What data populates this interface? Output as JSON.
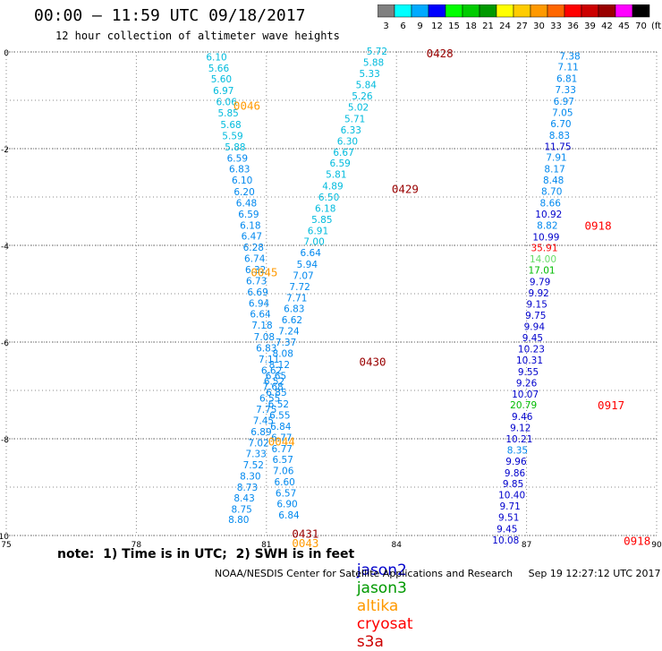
{
  "header": {
    "title": "00:00 – 11:59 UTC 09/18/2017",
    "subtitle": "12 hour collection of altimeter wave heights"
  },
  "colorbar": {
    "labels": [
      "3",
      "6",
      "9",
      "12",
      "15",
      "18",
      "21",
      "24",
      "27",
      "30",
      "33",
      "36",
      "39",
      "42",
      "45",
      "70",
      "(ft)"
    ],
    "colors": [
      "#808080",
      "#00ffff",
      "#00aaff",
      "#0000ff",
      "#00ff00",
      "#00cc00",
      "#009900",
      "#ffff00",
      "#ffcc00",
      "#ff9900",
      "#ff6600",
      "#ff0000",
      "#cc0000",
      "#990000",
      "#ff00ff",
      "#000000"
    ]
  },
  "note": "note:  1) Time is in UTC;  2) SWH is in feet",
  "satellites": [
    {
      "name": "jason2",
      "color": "#0000cc"
    },
    {
      "name": "jason3",
      "color": "#009900"
    },
    {
      "name": "altika",
      "color": "#ff9900"
    },
    {
      "name": "cryosat",
      "color": "#ff0000"
    },
    {
      "name": "s3a",
      "color": "#cc0000"
    }
  ],
  "footer": "NOAA/NESDIS Center for Satellite Applications and Research     Sep 19 12:27:12 UTC 2017",
  "chart_data": {
    "type": "scatter",
    "xlim": [
      75,
      90
    ],
    "ylim": [
      -10,
      0
    ],
    "xticks": [
      "75",
      "78",
      "81",
      "84",
      "87",
      "90"
    ],
    "yticks": [
      "0",
      "-2",
      "-4",
      "-6",
      "-8",
      "-10"
    ],
    "grid": true,
    "colors": {
      "cyan": "#00bbdd",
      "sky": "#0088ee",
      "blue": "#0000cc",
      "green": "#00bb00",
      "orange": "#ff9900",
      "red": "#ff0000",
      "dark": "#990000",
      "lightgreen": "#66dd66"
    },
    "tracks": [
      {
        "id": "trackA",
        "points": [
          {
            "x": 79.85,
            "y": -0.1,
            "label": "6.10",
            "c": "cyan"
          },
          {
            "x": 79.9,
            "y": -0.33,
            "label": "5.66",
            "c": "cyan"
          },
          {
            "x": 79.96,
            "y": -0.56,
            "label": "5.60",
            "c": "cyan"
          },
          {
            "x": 80.01,
            "y": -0.8,
            "label": "6.97",
            "c": "cyan"
          },
          {
            "x": 80.08,
            "y": -1.03,
            "label": "6.06",
            "c": "cyan"
          },
          {
            "x": 80.12,
            "y": -1.26,
            "label": "5.85",
            "c": "cyan"
          },
          {
            "x": 80.18,
            "y": -1.5,
            "label": "5.68",
            "c": "cyan"
          },
          {
            "x": 80.22,
            "y": -1.73,
            "label": "5.59",
            "c": "cyan"
          },
          {
            "x": 80.28,
            "y": -1.96,
            "label": "5.88",
            "c": "cyan"
          },
          {
            "x": 80.33,
            "y": -2.19,
            "label": "6.59",
            "c": "sky"
          },
          {
            "x": 80.38,
            "y": -2.42,
            "label": "6.83",
            "c": "sky"
          },
          {
            "x": 80.44,
            "y": -2.65,
            "label": "6.10",
            "c": "sky"
          },
          {
            "x": 80.49,
            "y": -2.89,
            "label": "6.20",
            "c": "sky"
          },
          {
            "x": 80.54,
            "y": -3.12,
            "label": "6.48",
            "c": "sky"
          },
          {
            "x": 80.59,
            "y": -3.35,
            "label": "6.59",
            "c": "sky"
          },
          {
            "x": 80.63,
            "y": -3.58,
            "label": "6.18",
            "c": "sky"
          },
          {
            "x": 80.66,
            "y": -3.81,
            "label": "6.47",
            "c": "sky"
          },
          {
            "x": 80.7,
            "y": -4.04,
            "label": "6.28",
            "c": "sky"
          },
          {
            "x": 80.73,
            "y": -4.27,
            "label": "6.74",
            "c": "sky"
          },
          {
            "x": 80.75,
            "y": -4.5,
            "label": "6.32",
            "c": "sky"
          },
          {
            "x": 80.77,
            "y": -4.73,
            "label": "6.73",
            "c": "sky"
          },
          {
            "x": 80.8,
            "y": -4.96,
            "label": "6.69",
            "c": "sky"
          },
          {
            "x": 80.83,
            "y": -5.19,
            "label": "6.94",
            "c": "sky"
          },
          {
            "x": 80.86,
            "y": -5.42,
            "label": "6.64",
            "c": "sky"
          },
          {
            "x": 80.9,
            "y": -5.65,
            "label": "7.18",
            "c": "sky"
          },
          {
            "x": 80.95,
            "y": -5.89,
            "label": "7.08",
            "c": "sky"
          },
          {
            "x": 81.0,
            "y": -6.12,
            "label": "6.83",
            "c": "sky"
          },
          {
            "x": 81.06,
            "y": -6.35,
            "label": "7.11",
            "c": "sky"
          },
          {
            "x": 81.12,
            "y": -6.58,
            "label": "6.62",
            "c": "sky"
          },
          {
            "x": 81.18,
            "y": -6.81,
            "label": "6.52",
            "c": "sky"
          },
          {
            "x": 81.23,
            "y": -7.04,
            "label": "6.85",
            "c": "sky"
          },
          {
            "x": 81.28,
            "y": -7.28,
            "label": "6.52",
            "c": "sky"
          },
          {
            "x": 81.31,
            "y": -7.51,
            "label": "6.55",
            "c": "sky"
          },
          {
            "x": 81.33,
            "y": -7.74,
            "label": "6.84",
            "c": "sky"
          },
          {
            "x": 81.35,
            "y": -7.97,
            "label": "6.77",
            "c": "sky"
          },
          {
            "x": 81.36,
            "y": -8.2,
            "label": "6.77",
            "c": "sky"
          },
          {
            "x": 81.38,
            "y": -8.43,
            "label": "6.57",
            "c": "sky"
          },
          {
            "x": 81.39,
            "y": -8.66,
            "label": "7.06",
            "c": "sky"
          },
          {
            "x": 81.42,
            "y": -8.89,
            "label": "6.60",
            "c": "sky"
          },
          {
            "x": 81.45,
            "y": -9.12,
            "label": "6.57",
            "c": "sky"
          },
          {
            "x": 81.48,
            "y": -9.34,
            "label": "6.90",
            "c": "sky"
          },
          {
            "x": 81.52,
            "y": -9.57,
            "label": "6.84",
            "c": "sky"
          }
        ]
      },
      {
        "id": "trackB",
        "points": [
          {
            "x": 83.55,
            "y": 0.02,
            "label": "5.72",
            "c": "cyan"
          },
          {
            "x": 83.47,
            "y": -0.21,
            "label": "5.88",
            "c": "cyan"
          },
          {
            "x": 83.38,
            "y": -0.44,
            "label": "5.33",
            "c": "cyan"
          },
          {
            "x": 83.3,
            "y": -0.68,
            "label": "5.84",
            "c": "cyan"
          },
          {
            "x": 83.21,
            "y": -0.91,
            "label": "5.26",
            "c": "cyan"
          },
          {
            "x": 83.12,
            "y": -1.14,
            "label": "5.02",
            "c": "cyan"
          },
          {
            "x": 83.04,
            "y": -1.38,
            "label": "5.71",
            "c": "cyan"
          },
          {
            "x": 82.95,
            "y": -1.61,
            "label": "6.33",
            "c": "cyan"
          },
          {
            "x": 82.87,
            "y": -1.84,
            "label": "6.30",
            "c": "cyan"
          },
          {
            "x": 82.78,
            "y": -2.07,
            "label": "6.67",
            "c": "cyan"
          },
          {
            "x": 82.7,
            "y": -2.3,
            "label": "6.59",
            "c": "cyan"
          },
          {
            "x": 82.61,
            "y": -2.53,
            "label": "5.81",
            "c": "cyan"
          },
          {
            "x": 82.53,
            "y": -2.77,
            "label": "4.89",
            "c": "cyan"
          },
          {
            "x": 82.44,
            "y": -3.0,
            "label": "6.50",
            "c": "cyan"
          },
          {
            "x": 82.36,
            "y": -3.23,
            "label": "6.18",
            "c": "cyan"
          },
          {
            "x": 82.28,
            "y": -3.46,
            "label": "5.85",
            "c": "cyan"
          },
          {
            "x": 82.19,
            "y": -3.69,
            "label": "6.91",
            "c": "cyan"
          },
          {
            "x": 82.1,
            "y": -3.92,
            "label": "7.00",
            "c": "cyan"
          },
          {
            "x": 82.02,
            "y": -4.15,
            "label": "6.64",
            "c": "sky"
          },
          {
            "x": 81.94,
            "y": -4.39,
            "label": "5.94",
            "c": "sky"
          },
          {
            "x": 81.85,
            "y": -4.62,
            "label": "7.07",
            "c": "sky"
          },
          {
            "x": 81.77,
            "y": -4.85,
            "label": "7.72",
            "c": "sky"
          },
          {
            "x": 81.7,
            "y": -5.08,
            "label": "7.71",
            "c": "sky"
          },
          {
            "x": 81.64,
            "y": -5.31,
            "label": "6.83",
            "c": "sky"
          },
          {
            "x": 81.59,
            "y": -5.54,
            "label": "6.62",
            "c": "sky"
          },
          {
            "x": 81.52,
            "y": -5.77,
            "label": "7.24",
            "c": "sky"
          },
          {
            "x": 81.45,
            "y": -6.0,
            "label": "7.37",
            "c": "sky"
          },
          {
            "x": 81.38,
            "y": -6.23,
            "label": "8.08",
            "c": "sky"
          },
          {
            "x": 81.3,
            "y": -6.46,
            "label": "8.12",
            "c": "sky"
          },
          {
            "x": 81.22,
            "y": -6.69,
            "label": "6.65",
            "c": "sky"
          },
          {
            "x": 81.15,
            "y": -6.92,
            "label": "7.68",
            "c": "sky"
          },
          {
            "x": 81.08,
            "y": -7.16,
            "label": "6.55",
            "c": "sky"
          },
          {
            "x": 81.0,
            "y": -7.39,
            "label": "7.75",
            "c": "sky"
          },
          {
            "x": 80.93,
            "y": -7.62,
            "label": "7.45",
            "c": "sky"
          },
          {
            "x": 80.88,
            "y": -7.85,
            "label": "6.89",
            "c": "sky"
          },
          {
            "x": 80.82,
            "y": -8.08,
            "label": "7.02",
            "c": "sky"
          },
          {
            "x": 80.76,
            "y": -8.31,
            "label": "7.33",
            "c": "sky"
          },
          {
            "x": 80.7,
            "y": -8.54,
            "label": "7.52",
            "c": "sky"
          },
          {
            "x": 80.63,
            "y": -8.77,
            "label": "8.30",
            "c": "sky"
          },
          {
            "x": 80.56,
            "y": -9.0,
            "label": "8.73",
            "c": "sky"
          },
          {
            "x": 80.49,
            "y": -9.22,
            "label": "8.43",
            "c": "sky"
          },
          {
            "x": 80.43,
            "y": -9.45,
            "label": "8.75",
            "c": "sky"
          },
          {
            "x": 80.36,
            "y": -9.67,
            "label": "8.80",
            "c": "sky"
          }
        ]
      },
      {
        "id": "trackC",
        "points": [
          {
            "x": 88.0,
            "y": -0.08,
            "label": "7.38",
            "c": "sky"
          },
          {
            "x": 87.96,
            "y": -0.31,
            "label": "7.11",
            "c": "sky"
          },
          {
            "x": 87.93,
            "y": -0.55,
            "label": "6.81",
            "c": "sky"
          },
          {
            "x": 87.9,
            "y": -0.78,
            "label": "7.33",
            "c": "sky"
          },
          {
            "x": 87.86,
            "y": -1.02,
            "label": "6.97",
            "c": "sky"
          },
          {
            "x": 87.83,
            "y": -1.25,
            "label": "7.05",
            "c": "sky"
          },
          {
            "x": 87.79,
            "y": -1.48,
            "label": "6.70",
            "c": "sky"
          },
          {
            "x": 87.76,
            "y": -1.72,
            "label": "8.83",
            "c": "sky"
          },
          {
            "x": 87.72,
            "y": -1.95,
            "label": "11.75",
            "c": "blue"
          },
          {
            "x": 87.69,
            "y": -2.18,
            "label": "7.91",
            "c": "sky"
          },
          {
            "x": 87.65,
            "y": -2.42,
            "label": "8.17",
            "c": "sky"
          },
          {
            "x": 87.62,
            "y": -2.65,
            "label": "8.48",
            "c": "sky"
          },
          {
            "x": 87.58,
            "y": -2.88,
            "label": "8.70",
            "c": "sky"
          },
          {
            "x": 87.55,
            "y": -3.12,
            "label": "8.66",
            "c": "sky"
          },
          {
            "x": 87.51,
            "y": -3.35,
            "label": "10.92",
            "c": "blue"
          },
          {
            "x": 87.48,
            "y": -3.58,
            "label": "8.82",
            "c": "sky"
          },
          {
            "x": 87.45,
            "y": -3.82,
            "label": "10.99",
            "c": "blue"
          },
          {
            "x": 87.41,
            "y": -4.05,
            "label": "35.91",
            "c": "red"
          },
          {
            "x": 87.38,
            "y": -4.28,
            "label": "14.00",
            "c": "lightgreen"
          },
          {
            "x": 87.35,
            "y": -4.51,
            "label": "17.01",
            "c": "green"
          },
          {
            "x": 87.31,
            "y": -4.75,
            "label": "9.79",
            "c": "blue"
          },
          {
            "x": 87.28,
            "y": -4.98,
            "label": "9.92",
            "c": "blue"
          },
          {
            "x": 87.24,
            "y": -5.21,
            "label": "9.15",
            "c": "blue"
          },
          {
            "x": 87.21,
            "y": -5.44,
            "label": "9.75",
            "c": "blue"
          },
          {
            "x": 87.18,
            "y": -5.68,
            "label": "9.94",
            "c": "blue"
          },
          {
            "x": 87.14,
            "y": -5.91,
            "label": "9.45",
            "c": "blue"
          },
          {
            "x": 87.11,
            "y": -6.14,
            "label": "10.23",
            "c": "blue"
          },
          {
            "x": 87.07,
            "y": -6.37,
            "label": "10.31",
            "c": "blue"
          },
          {
            "x": 87.04,
            "y": -6.61,
            "label": "9.55",
            "c": "blue"
          },
          {
            "x": 87.0,
            "y": -6.84,
            "label": "9.26",
            "c": "blue"
          },
          {
            "x": 86.97,
            "y": -7.07,
            "label": "10.07",
            "c": "blue"
          },
          {
            "x": 86.93,
            "y": -7.3,
            "label": "20.79",
            "c": "green"
          },
          {
            "x": 86.9,
            "y": -7.54,
            "label": "9.46",
            "c": "blue"
          },
          {
            "x": 86.86,
            "y": -7.77,
            "label": "9.12",
            "c": "blue"
          },
          {
            "x": 86.83,
            "y": -8.0,
            "label": "10.21",
            "c": "blue"
          },
          {
            "x": 86.79,
            "y": -8.23,
            "label": "8.35",
            "c": "sky"
          },
          {
            "x": 86.76,
            "y": -8.46,
            "label": "9.96",
            "c": "blue"
          },
          {
            "x": 86.73,
            "y": -8.7,
            "label": "9.86",
            "c": "blue"
          },
          {
            "x": 86.69,
            "y": -8.93,
            "label": "9.85",
            "c": "blue"
          },
          {
            "x": 86.66,
            "y": -9.16,
            "label": "10.40",
            "c": "blue"
          },
          {
            "x": 86.62,
            "y": -9.39,
            "label": "9.71",
            "c": "blue"
          },
          {
            "x": 86.59,
            "y": -9.62,
            "label": "9.51",
            "c": "blue"
          },
          {
            "x": 86.55,
            "y": -9.86,
            "label": "9.45",
            "c": "blue"
          },
          {
            "x": 86.52,
            "y": -10.09,
            "label": "10.08",
            "c": "blue"
          }
        ]
      }
    ],
    "time_labels": [
      {
        "x": 85.0,
        "y": -0.02,
        "label": "0428",
        "c": "dark"
      },
      {
        "x": 80.55,
        "y": -1.1,
        "label": "0046",
        "c": "orange"
      },
      {
        "x": 84.2,
        "y": -2.82,
        "label": "0429",
        "c": "dark"
      },
      {
        "x": 88.65,
        "y": -3.58,
        "label": "0918",
        "c": "red"
      },
      {
        "x": 80.95,
        "y": -4.55,
        "label": "0045",
        "c": "orange"
      },
      {
        "x": 83.45,
        "y": -6.4,
        "label": "0430",
        "c": "dark"
      },
      {
        "x": 88.95,
        "y": -7.3,
        "label": "0917",
        "c": "red"
      },
      {
        "x": 81.35,
        "y": -8.05,
        "label": "0044",
        "c": "orange"
      },
      {
        "x": 81.9,
        "y": -9.95,
        "label": "0431",
        "c": "dark"
      },
      {
        "x": 81.9,
        "y": -10.15,
        "label": "0043",
        "c": "orange"
      },
      {
        "x": 89.55,
        "y": -10.1,
        "label": "0918",
        "c": "red"
      }
    ]
  }
}
